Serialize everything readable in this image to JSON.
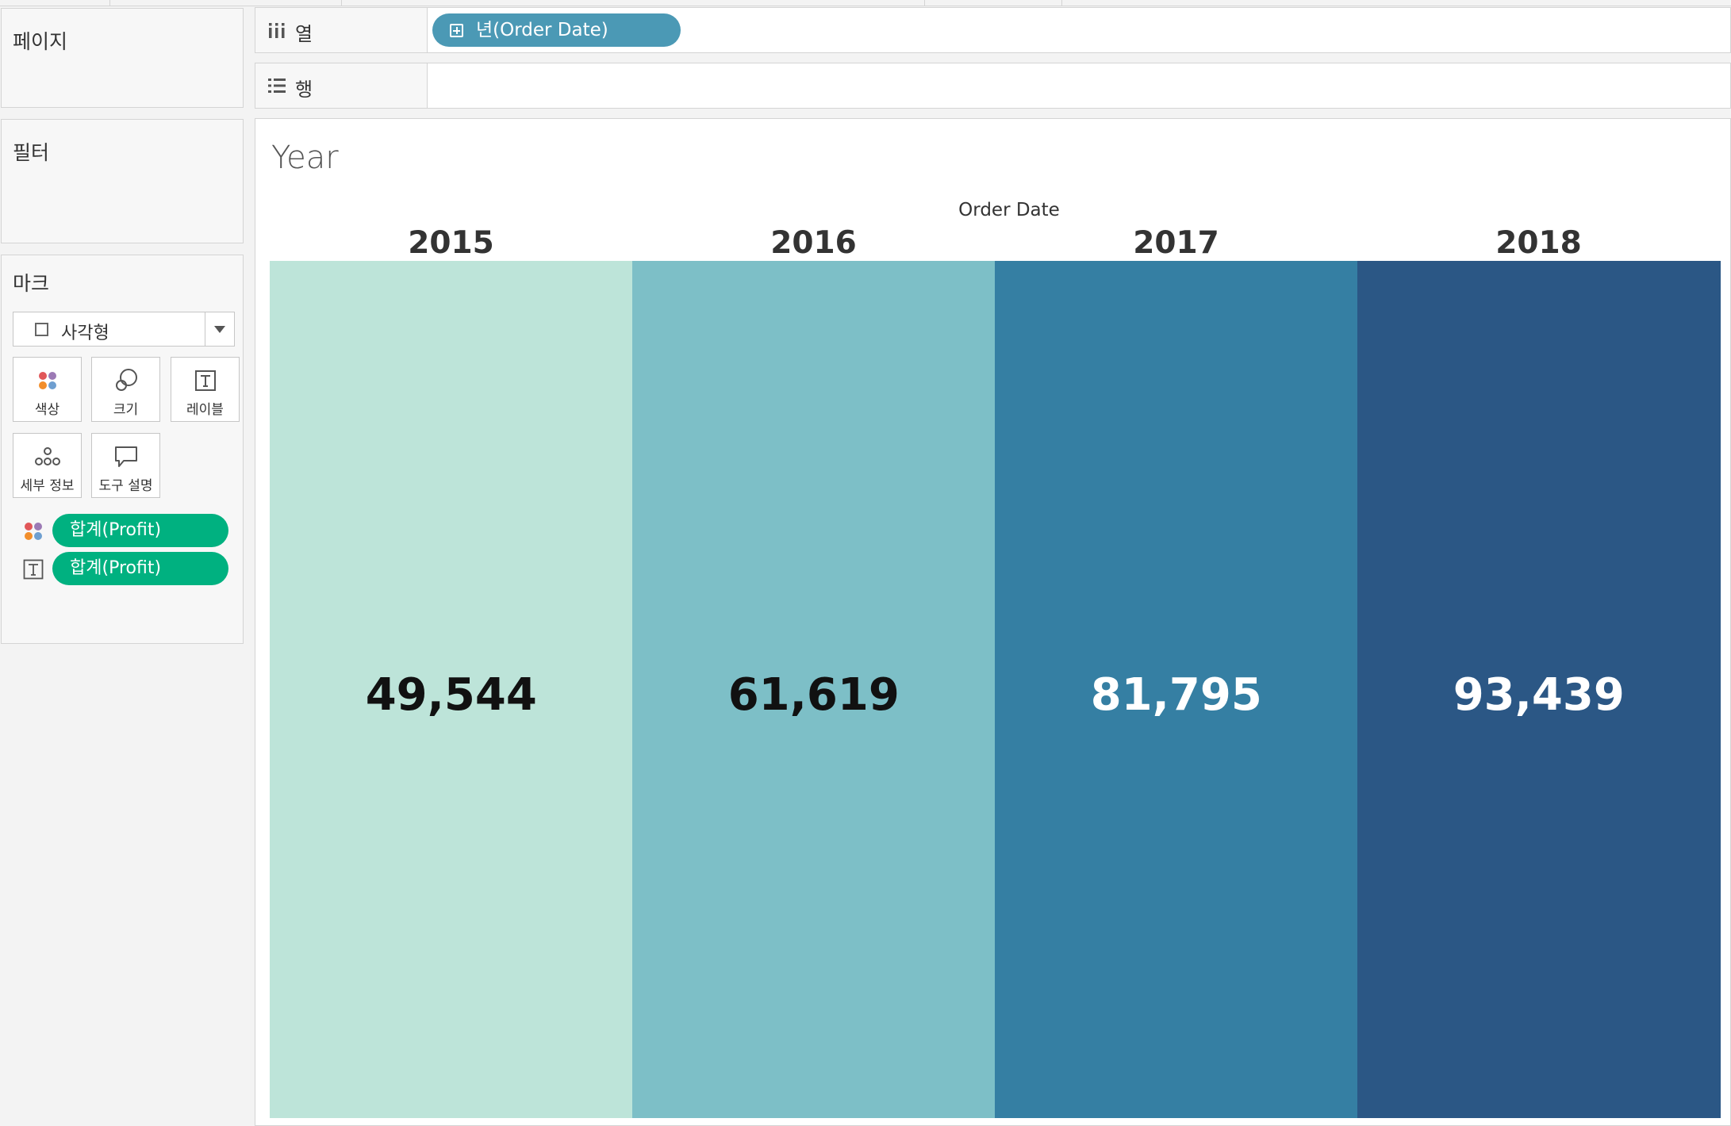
{
  "cards": {
    "pages": {
      "title": "페이지"
    },
    "filters": {
      "title": "필터"
    },
    "marks": {
      "title": "마크",
      "mark_type": "사각형",
      "buttons": {
        "color": "색상",
        "size": "크기",
        "label": "레이블",
        "detail": "세부 정보",
        "tooltip": "도구 설명"
      },
      "pills": [
        {
          "icon": "color-dots-icon",
          "label": "합계(Profit)"
        },
        {
          "icon": "text-label-icon",
          "label": "합계(Profit)"
        }
      ]
    }
  },
  "shelves": {
    "columns": {
      "label": "열",
      "pill": "년(Order Date)"
    },
    "rows": {
      "label": "행"
    }
  },
  "view": {
    "title": "Year",
    "header": "Order Date"
  },
  "chart_data": {
    "type": "heatmap",
    "title": "Year",
    "xlabel": "Order Date",
    "categories": [
      "2015",
      "2016",
      "2017",
      "2018"
    ],
    "values": [
      49544,
      61619,
      81795,
      93439
    ],
    "value_labels": [
      "49,544",
      "61,619",
      "81,795",
      "93,439"
    ],
    "colors": [
      "#bde4d9",
      "#7dbfc7",
      "#357fa3",
      "#2b5785"
    ],
    "label_colors": [
      "#111111",
      "#111111",
      "#ffffff",
      "#ffffff"
    ]
  }
}
